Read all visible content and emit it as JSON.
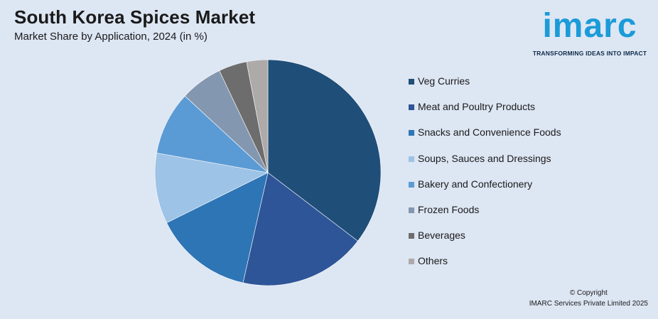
{
  "header": {
    "title": "South Korea Spices Market",
    "subtitle": "Market Share by Application, 2024 (in %)"
  },
  "logo": {
    "word": "imarc",
    "tagline": "TRANSFORMING IDEAS INTO IMPACT"
  },
  "chart_data": {
    "type": "pie",
    "title": "South Korea Spices Market",
    "subtitle": "Market Share by Application, 2024 (in %)",
    "legend_position": "right",
    "slices": [
      {
        "label": "Veg Curries",
        "value": 35,
        "color": "#1f4e79"
      },
      {
        "label": "Meat and Poultry Products",
        "value": 18,
        "color": "#2e5597"
      },
      {
        "label": "Snacks and Convenience Foods",
        "value": 14,
        "color": "#2e75b6"
      },
      {
        "label": "Soups, Sauces and Dressings",
        "value": 10,
        "color": "#9dc3e6"
      },
      {
        "label": "Bakery and Confectionery",
        "value": 9,
        "color": "#5b9bd5"
      },
      {
        "label": "Frozen Foods",
        "value": 6,
        "color": "#8497b0"
      },
      {
        "label": "Beverages",
        "value": 4,
        "color": "#6d6d6d"
      },
      {
        "label": "Others",
        "value": 3,
        "color": "#aeaaaa"
      }
    ]
  },
  "footer": {
    "copyright_line1": "© Copyright",
    "copyright_line2": "IMARC Services Private Limited 2025"
  }
}
